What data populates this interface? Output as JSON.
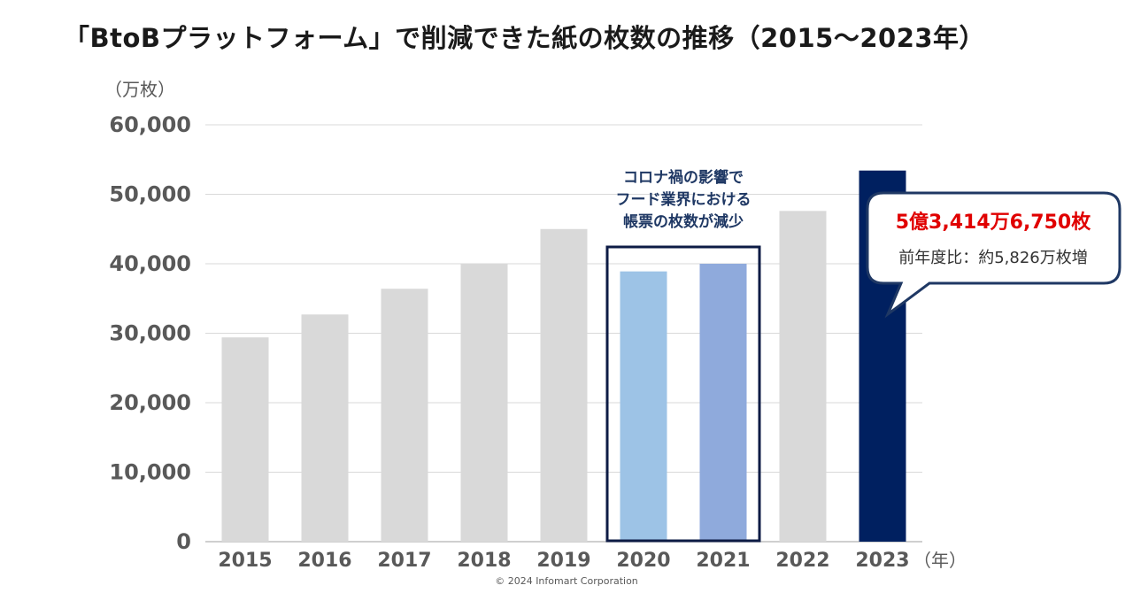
{
  "title": "「BtoBプラットフォーム」で削減できた紙の枚数の推移（2015〜2023年）",
  "copyright": "© 2024  Infomart Corporation",
  "chart_data": {
    "type": "bar",
    "title": "「BtoBプラットフォーム」で削減できた紙の枚数の推移（2015〜2023年）",
    "ylabel": "（万枚）",
    "xlabel": "（年）",
    "ylim": [
      0,
      60000
    ],
    "yticks": [
      0,
      10000,
      20000,
      30000,
      40000,
      50000,
      60000
    ],
    "ytick_labels": [
      "0",
      "10,000",
      "20,000",
      "30,000",
      "40,000",
      "50,000",
      "60,000"
    ],
    "grid": true,
    "categories": [
      "2015",
      "2016",
      "2017",
      "2018",
      "2019",
      "2020",
      "2021",
      "2022",
      "2023"
    ],
    "values": [
      29400,
      32700,
      36400,
      40000,
      45000,
      38900,
      40000,
      47600,
      53415
    ],
    "bar_colors": [
      "#d9d9d9",
      "#d9d9d9",
      "#d9d9d9",
      "#d9d9d9",
      "#d9d9d9",
      "#9dc3e6",
      "#8faadc",
      "#d9d9d9",
      "#002060"
    ],
    "annotations": {
      "covid_note": [
        "コロナ禍の影響で",
        "フード業界における",
        "帳票の枚数が減少"
      ],
      "callout_main": "5億3,414万6,750枚",
      "callout_sub": "前年度比：約5,826万枚増"
    }
  },
  "colors": {
    "box_border": "#0d1b45",
    "callout_border": "#1f3864",
    "accent_red": "#e00000"
  }
}
